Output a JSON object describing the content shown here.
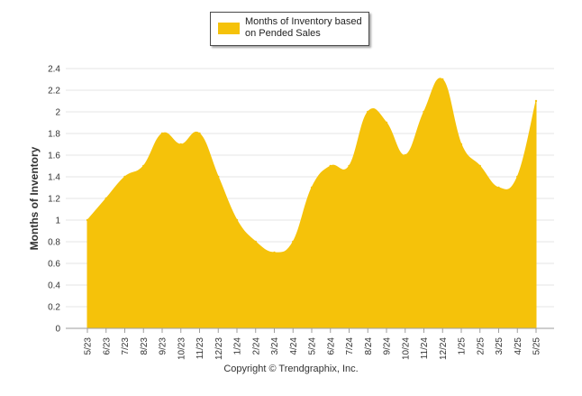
{
  "chart_data": {
    "type": "area",
    "ylabel": "Months of Inventory",
    "xlabel": "",
    "ylim": [
      0,
      2.4
    ],
    "yticks": [
      "0",
      "0.2",
      "0.4",
      "0.6",
      "0.8",
      "1",
      "1.2",
      "1.4",
      "1.6",
      "1.8",
      "2",
      "2.2",
      "2.4"
    ],
    "grid": true,
    "legend_position": "top-center",
    "categories": [
      "5/23",
      "6/23",
      "7/23",
      "8/23",
      "9/23",
      "10/23",
      "11/23",
      "12/23",
      "1/24",
      "2/24",
      "3/24",
      "4/24",
      "5/24",
      "6/24",
      "7/24",
      "8/24",
      "9/24",
      "10/24",
      "11/24",
      "12/24",
      "1/25",
      "2/25",
      "3/25",
      "4/25",
      "5/25"
    ],
    "series": [
      {
        "name": "Months of Inventory based on Pended Sales",
        "color": "#f5c20a",
        "values": [
          1.0,
          1.2,
          1.4,
          1.5,
          1.8,
          1.7,
          1.8,
          1.4,
          1.0,
          0.8,
          0.7,
          0.8,
          1.3,
          1.5,
          1.5,
          2.0,
          1.9,
          1.6,
          2.0,
          2.3,
          1.7,
          1.5,
          1.3,
          1.4,
          2.1
        ]
      }
    ]
  },
  "legend": {
    "label": "Months of Inventory based on Pended Sales",
    "color": "#f5c20a"
  },
  "footer": {
    "copyright": "Copyright © Trendgraphix, Inc."
  }
}
